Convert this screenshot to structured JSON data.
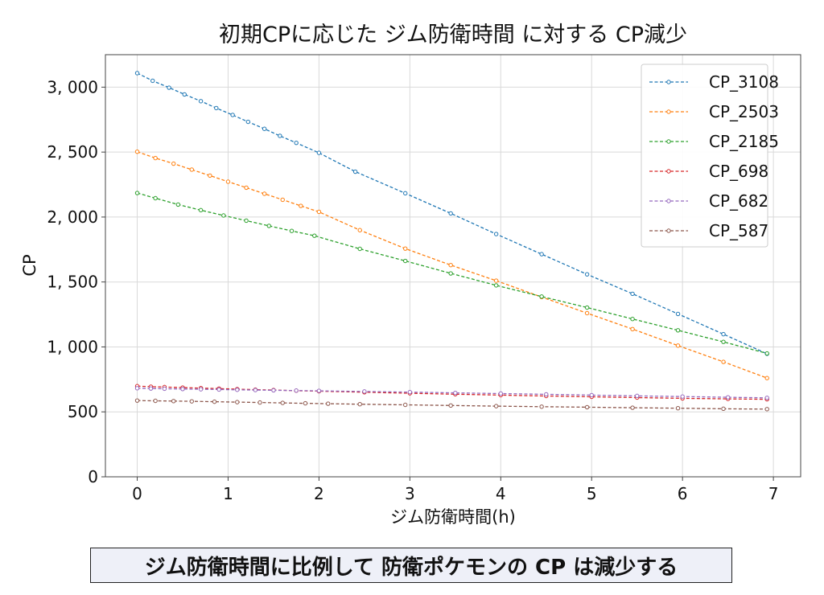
{
  "chart_data": {
    "type": "line",
    "title": "初期CPに応じた ジム防衛時間 に対する CP減少",
    "xlabel": "ジム防衛時間(h)",
    "ylabel": "CP",
    "xlim": [
      -0.35,
      7.3
    ],
    "ylim": [
      0,
      3250
    ],
    "xticks": [
      0,
      1,
      2,
      3,
      4,
      5,
      6,
      7
    ],
    "xtick_labels": [
      "0",
      "1",
      "2",
      "3",
      "4",
      "5",
      "6",
      "7"
    ],
    "yticks": [
      0,
      500,
      1000,
      1500,
      2000,
      2500,
      3000
    ],
    "ytick_labels": [
      "0",
      "500",
      "1, 000",
      "1, 500",
      "2, 000",
      "2, 500",
      "3, 000"
    ],
    "grid": true,
    "line_style": "dashed",
    "marker": "open-circle",
    "legend_position": "top-right",
    "series": [
      {
        "name": "CP_3108",
        "color": "#1f77b4",
        "x": [
          0,
          0.17,
          0.35,
          0.52,
          0.7,
          0.87,
          1.05,
          1.22,
          1.4,
          1.57,
          1.75,
          2.0,
          2.4,
          2.95,
          3.45,
          3.95,
          4.45,
          4.95,
          5.45,
          5.95,
          6.45,
          6.93
        ],
        "y": [
          3108,
          3049,
          2996,
          2944,
          2892,
          2839,
          2786,
          2733,
          2679,
          2625,
          2571,
          2494,
          2349,
          2183,
          2028,
          1869,
          1714,
          1559,
          1409,
          1254,
          1098,
          947
        ]
      },
      {
        "name": "CP_2503",
        "color": "#ff7f0e",
        "x": [
          0,
          0.2,
          0.4,
          0.6,
          0.8,
          1.0,
          1.2,
          1.4,
          1.6,
          1.8,
          2.0,
          2.45,
          2.95,
          3.45,
          3.95,
          4.45,
          4.95,
          5.45,
          5.95,
          6.45,
          6.93
        ],
        "y": [
          2503,
          2454,
          2411,
          2365,
          2319,
          2272,
          2226,
          2179,
          2133,
          2086,
          2040,
          1899,
          1757,
          1630,
          1510,
          1384,
          1260,
          1137,
          1010,
          885,
          760
        ]
      },
      {
        "name": "CP_2185",
        "color": "#2ca02c",
        "x": [
          0,
          0.2,
          0.45,
          0.7,
          0.95,
          1.2,
          1.45,
          1.7,
          1.95,
          2.45,
          2.95,
          3.45,
          3.95,
          4.45,
          4.95,
          5.45,
          5.95,
          6.45,
          6.93
        ],
        "y": [
          2185,
          2145,
          2096,
          2053,
          2012,
          1972,
          1932,
          1893,
          1856,
          1755,
          1662,
          1566,
          1474,
          1388,
          1303,
          1215,
          1128,
          1039,
          950
        ]
      },
      {
        "name": "CP_698",
        "color": "#d62728",
        "x": [
          0,
          0.15,
          0.3,
          0.5,
          0.7,
          0.9,
          1.1,
          1.3,
          1.5,
          1.75,
          2.0,
          2.5,
          3.0,
          3.5,
          4.0,
          4.5,
          5.0,
          5.5,
          6.0,
          6.5,
          6.93
        ],
        "y": [
          698,
          694,
          691,
          687,
          683,
          679,
          675,
          671,
          668,
          663,
          659,
          651,
          643,
          636,
          629,
          622,
          616,
          610,
          604,
          600,
          597
        ]
      },
      {
        "name": "CP_682",
        "color": "#9467bd",
        "x": [
          0,
          0.15,
          0.3,
          0.5,
          0.7,
          0.9,
          1.1,
          1.3,
          1.5,
          1.75,
          2.0,
          2.5,
          3.0,
          3.5,
          4.0,
          4.5,
          5.0,
          5.5,
          6.0,
          6.5,
          6.93
        ],
        "y": [
          682,
          680,
          678,
          676,
          674,
          672,
          670,
          668,
          666,
          664,
          662,
          657,
          652,
          646,
          641,
          635,
          629,
          623,
          618,
          612,
          608
        ]
      },
      {
        "name": "CP_587",
        "color": "#8c564b",
        "x": [
          0,
          0.2,
          0.4,
          0.6,
          0.85,
          1.1,
          1.35,
          1.6,
          1.85,
          2.1,
          2.45,
          2.95,
          3.45,
          3.95,
          4.45,
          4.95,
          5.45,
          5.95,
          6.45,
          6.93
        ],
        "y": [
          587,
          585,
          583,
          581,
          578,
          575,
          572,
          569,
          566,
          563,
          559,
          554,
          549,
          544,
          540,
          536,
          532,
          528,
          524,
          521
        ]
      }
    ]
  },
  "caption": "ジム防衛時間に比例して 防衛ポケモンの CP は減少する"
}
